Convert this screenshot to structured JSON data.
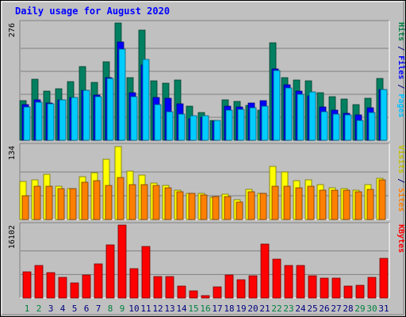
{
  "chart_data": {
    "type": "bar",
    "title": "Daily usage for August 2020",
    "categories": [
      "1",
      "2",
      "3",
      "4",
      "5",
      "6",
      "7",
      "8",
      "9",
      "10",
      "11",
      "12",
      "13",
      "14",
      "15",
      "16",
      "17",
      "18",
      "19",
      "20",
      "21",
      "22",
      "23",
      "24",
      "25",
      "26",
      "27",
      "28",
      "29",
      "30",
      "31"
    ],
    "weekend_days": [
      "1",
      "2",
      "8",
      "9",
      "15",
      "16",
      "22",
      "23",
      "29",
      "30"
    ],
    "panels": [
      {
        "id": "top",
        "ylim": [
          0,
          276
        ],
        "max_label": "276",
        "axis_legend": [
          {
            "text": "Hits",
            "color": "#008040"
          },
          {
            "text": " / ",
            "color": "#000080"
          },
          {
            "text": "Files",
            "color": "#0000ff"
          },
          {
            "text": " / ",
            "color": "#000080"
          },
          {
            "text": "Pages",
            "color": "#00c0ff"
          }
        ],
        "series": [
          {
            "name": "Hits",
            "color": "#008060",
            "values": [
              94,
              143,
              116,
              122,
              138,
              173,
              136,
              185,
              276,
              148,
              260,
              140,
              134,
              141,
              80,
              65,
              47,
              95,
              91,
              82,
              70,
              230,
              148,
              142,
              140,
              111,
              102,
              97,
              84,
              98,
              145
            ]
          },
          {
            "name": "Files",
            "color": "#0000ff",
            "values": [
              83,
              95,
              87,
              96,
              100,
              117,
              106,
              148,
              232,
              112,
              178,
              100,
              98,
              86,
              50,
              55,
              44,
              81,
              78,
              88,
              94,
              168,
              130,
              116,
              105,
              78,
              71,
              63,
              60,
              77,
              120
            ]
          },
          {
            "name": "Pages",
            "color": "#00ccff",
            "values": [
              78,
              90,
              85,
              96,
              101,
              117,
              103,
              145,
              215,
              102,
              191,
              84,
              68,
              61,
              58,
              58,
              47,
              71,
              72,
              76,
              80,
              164,
              123,
              108,
              113,
              67,
              61,
              59,
              46,
              65,
              119
            ]
          }
        ]
      },
      {
        "id": "middle",
        "ylim": [
          0,
          134
        ],
        "max_label": "134",
        "axis_legend": [
          {
            "text": "Visits",
            "color": "#c0c000"
          },
          {
            "text": " / ",
            "color": "#000080"
          },
          {
            "text": "Sites",
            "color": "#ff8000"
          }
        ],
        "series": [
          {
            "name": "Visits",
            "color": "#ffff00",
            "values": [
              69,
              72,
              82,
              60,
              56,
              78,
              85,
              110,
              133,
              88,
              80,
              66,
              62,
              53,
              48,
              48,
              41,
              46,
              36,
              55,
              48,
              97,
              87,
              71,
              72,
              64,
              57,
              56,
              53,
              64,
              75
            ]
          },
          {
            "name": "Sites",
            "color": "#ff8000",
            "values": [
              43,
              61,
              61,
              56,
              56,
              68,
              71,
              62,
              77,
              64,
              63,
              62,
              58,
              51,
              48,
              45,
              42,
              42,
              32,
              51,
              47,
              61,
              61,
              58,
              61,
              54,
              54,
              53,
              51,
              55,
              72
            ]
          }
        ]
      },
      {
        "id": "bottom",
        "ylim": [
          0,
          16102
        ],
        "max_label": "16102",
        "axis_legend": [
          {
            "text": "KBytes",
            "color": "#ff0000"
          }
        ],
        "series": [
          {
            "name": "KBytes",
            "color": "#ff0000",
            "values": [
              5760,
              7150,
              5680,
              4560,
              3280,
              5080,
              7460,
              11680,
              16102,
              6470,
              11390,
              4690,
              4670,
              2590,
              1540,
              460,
              2530,
              4990,
              4030,
              4920,
              11950,
              8640,
              7090,
              7180,
              4840,
              4330,
              4340,
              2700,
              2720,
              4630,
              8830
            ]
          }
        ]
      }
    ]
  },
  "colors": {
    "background": "#c0c0c0",
    "panel": "#c0c0c0",
    "grid": "#808080",
    "title": "#0000ff",
    "weekday_label": "#000080",
    "weekend_label": "#008040"
  }
}
